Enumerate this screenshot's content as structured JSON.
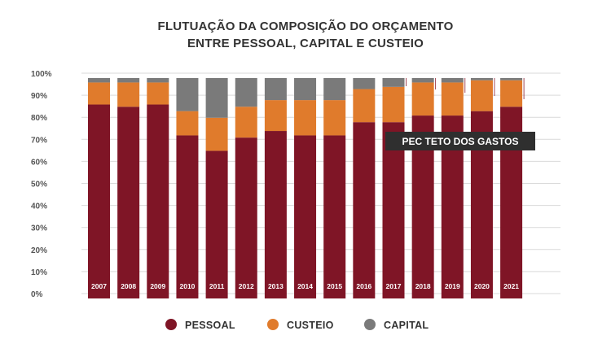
{
  "chart_data": {
    "type": "bar",
    "stacked": true,
    "title": [
      "FLUTUAÇÃO DA COMPOSIÇÃO DO  ORÇAMENTO",
      "ENTRE PESSOAL, CAPITAL E CUSTEIO"
    ],
    "categories": [
      "2007",
      "2008",
      "2009",
      "2010",
      "2011",
      "2012",
      "2013",
      "2014",
      "2015",
      "2016",
      "2017",
      "2018",
      "2019",
      "2020",
      "2021"
    ],
    "series": [
      {
        "name": "PESSOAL",
        "color": "#7f1526",
        "values": [
          88,
          87,
          88,
          74,
          67,
          73,
          76,
          74,
          74,
          80,
          80,
          83,
          83,
          85,
          87
        ]
      },
      {
        "name": "CUSTEIO",
        "color": "#e07b2c",
        "values": [
          10,
          11,
          10,
          11,
          15,
          14,
          14,
          16,
          16,
          15,
          16,
          15,
          15,
          14,
          12
        ]
      },
      {
        "name": "CAPITAL",
        "color": "#7a7a7a",
        "values": [
          2,
          2,
          2,
          15,
          18,
          13,
          10,
          10,
          10,
          5,
          4,
          2,
          2,
          1,
          1
        ]
      }
    ],
    "y_ticks": [
      "0%",
      "10%",
      "20%",
      "30%",
      "40%",
      "50%",
      "60%",
      "70%",
      "80%",
      "90%",
      "100%"
    ],
    "ylim": [
      0,
      100
    ],
    "grid": true,
    "legend": "bottom-center",
    "annotation": {
      "text": "PEC TETO DOS GASTOS",
      "from_category": "2017"
    }
  }
}
